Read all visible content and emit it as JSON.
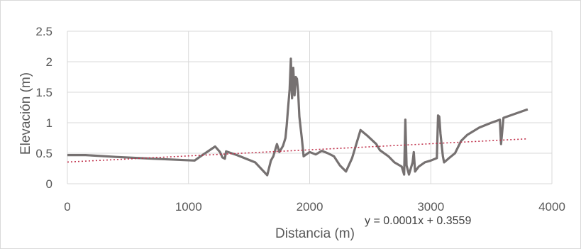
{
  "chart_data": {
    "type": "line",
    "title": "",
    "xlabel": "Distancia (m)",
    "ylabel": "Elevación (m)",
    "xlim": [
      0,
      4000
    ],
    "ylim": [
      0,
      2.5
    ],
    "x_ticks": [
      "0",
      "1000",
      "2000",
      "3000",
      "4000"
    ],
    "y_ticks": [
      "0",
      "0.5",
      "1",
      "1.5",
      "2",
      "2.5"
    ],
    "grid": true,
    "legend": "none",
    "colors": {
      "series": "#767171",
      "trendline": "#c0304a",
      "grid": "#d9d9d9",
      "text": "#595959"
    },
    "series": [
      {
        "values": [
          [
            0,
            0.47
          ],
          [
            150,
            0.47
          ],
          [
            400,
            0.44
          ],
          [
            700,
            0.41
          ],
          [
            1050,
            0.38
          ],
          [
            1100,
            0.45
          ],
          [
            1220,
            0.61
          ],
          [
            1260,
            0.52
          ],
          [
            1280,
            0.43
          ],
          [
            1300,
            0.41
          ],
          [
            1310,
            0.53
          ],
          [
            1400,
            0.47
          ],
          [
            1550,
            0.35
          ],
          [
            1650,
            0.14
          ],
          [
            1680,
            0.38
          ],
          [
            1700,
            0.45
          ],
          [
            1730,
            0.65
          ],
          [
            1750,
            0.52
          ],
          [
            1780,
            0.62
          ],
          [
            1800,
            0.75
          ],
          [
            1810,
            0.95
          ],
          [
            1820,
            1.2
          ],
          [
            1835,
            1.55
          ],
          [
            1845,
            2.05
          ],
          [
            1855,
            1.4
          ],
          [
            1865,
            1.9
          ],
          [
            1875,
            1.45
          ],
          [
            1885,
            1.75
          ],
          [
            1895,
            1.72
          ],
          [
            1905,
            1.5
          ],
          [
            1915,
            1.1
          ],
          [
            1935,
            0.75
          ],
          [
            1950,
            0.45
          ],
          [
            2000,
            0.52
          ],
          [
            2050,
            0.48
          ],
          [
            2100,
            0.54
          ],
          [
            2150,
            0.5
          ],
          [
            2200,
            0.45
          ],
          [
            2250,
            0.3
          ],
          [
            2300,
            0.2
          ],
          [
            2350,
            0.42
          ],
          [
            2420,
            0.88
          ],
          [
            2480,
            0.78
          ],
          [
            2550,
            0.65
          ],
          [
            2580,
            0.55
          ],
          [
            2650,
            0.45
          ],
          [
            2700,
            0.35
          ],
          [
            2760,
            0.28
          ],
          [
            2780,
            0.15
          ],
          [
            2790,
            1.05
          ],
          [
            2800,
            0.3
          ],
          [
            2820,
            0.15
          ],
          [
            2850,
            0.35
          ],
          [
            2860,
            0.52
          ],
          [
            2870,
            0.2
          ],
          [
            2900,
            0.28
          ],
          [
            2950,
            0.35
          ],
          [
            3000,
            0.38
          ],
          [
            3050,
            0.42
          ],
          [
            3060,
            1.12
          ],
          [
            3070,
            1.1
          ],
          [
            3080,
            0.82
          ],
          [
            3100,
            0.45
          ],
          [
            3110,
            0.35
          ],
          [
            3150,
            0.42
          ],
          [
            3200,
            0.5
          ],
          [
            3250,
            0.7
          ],
          [
            3300,
            0.8
          ],
          [
            3400,
            0.92
          ],
          [
            3500,
            1.0
          ],
          [
            3570,
            1.05
          ],
          [
            3580,
            0.65
          ],
          [
            3600,
            1.08
          ],
          [
            3700,
            1.15
          ],
          [
            3800,
            1.22
          ]
        ]
      }
    ],
    "trendline": {
      "slope": 0.0001,
      "intercept": 0.3559,
      "x_range": [
        0,
        3800
      ],
      "equation_label": "y = 0.0001x + 0.3559"
    }
  }
}
